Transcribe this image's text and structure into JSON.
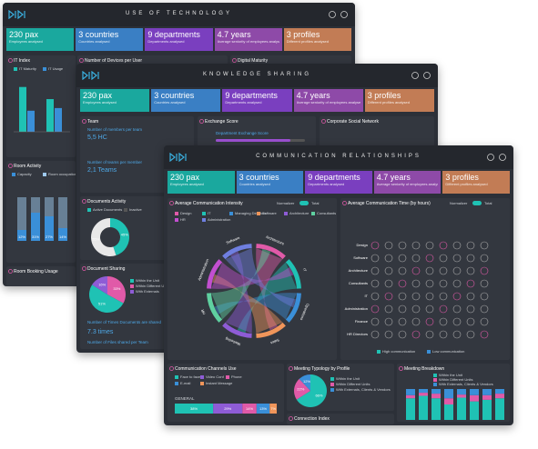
{
  "panels": [
    {
      "title": "USE OF TECHNOLOGY",
      "kpis": [
        {
          "value": "230 pax",
          "label": "Employees analysed"
        },
        {
          "value": "3 countries",
          "label": "Countries analysed"
        },
        {
          "value": "9 departments",
          "label": "Departments analysed"
        },
        {
          "value": "4.7 years",
          "label": "Average seniority of employees analysed"
        },
        {
          "value": "3 profiles",
          "label": "Different profiles analysed"
        }
      ],
      "cards": [
        "IT Index",
        "Number of Devices per User",
        "Digital Maturity",
        "Room Activity",
        "Room Booking Usage"
      ],
      "it_index": {
        "series": [
          {
            "name": "IT Maturity",
            "color": "#1fc2b4",
            "values": [
              85,
              62
            ]
          },
          {
            "name": "IT Usage",
            "color": "#3a8fd8",
            "values": [
              40,
              45
            ]
          }
        ],
        "ylim": [
          0,
          100
        ]
      },
      "room_activity": {
        "legend": [
          "Capacity",
          "Room occupation"
        ],
        "values": [
          12,
          31,
          27,
          14
        ],
        "value_labels": [
          "12%",
          "31%",
          "27%",
          "14%"
        ],
        "ylim": [
          0,
          100
        ]
      }
    },
    {
      "title": "KNOWLEDGE SHARING",
      "kpis": [
        {
          "value": "230 pax",
          "label": "Employees analysed"
        },
        {
          "value": "3 countries",
          "label": "Countries analysed"
        },
        {
          "value": "9 departments",
          "label": "Departments analysed"
        },
        {
          "value": "4.7 years",
          "label": "Average seniority of employees analysed"
        },
        {
          "value": "3 profiles",
          "label": "Different profiles analysed"
        }
      ],
      "cards": [
        "Team",
        "Exchange Score",
        "Corporate Social Network",
        "Documents Activity",
        "Document Sharing"
      ],
      "team": [
        {
          "label": "Number of members per team",
          "value": "5,5 HC"
        },
        {
          "label": "Number of teams per member",
          "value": "2,1 Teams"
        }
      ],
      "exchange": "Department Exchange Score",
      "docs_activity": {
        "legend": [
          "Active Documents",
          "Inactive"
        ],
        "values": [
          45,
          55
        ],
        "value_labels": [
          "45%",
          "55%"
        ]
      },
      "doc_sharing": {
        "legend": [
          "Within the Unit",
          "Within Different Units",
          "With Externals"
        ],
        "values": [
          33,
          51,
          16
        ],
        "value_labels": [
          "33%",
          "51%",
          "16%"
        ]
      },
      "shared": {
        "label": "Number of Times Documents are shared",
        "value": "7.3 times",
        "label2": "Number of Files shared per Team"
      }
    },
    {
      "title": "COMMUNICATION RELATIONSHIPS",
      "kpis": [
        {
          "value": "230 pax",
          "label": "Employees analysed"
        },
        {
          "value": "3 countries",
          "label": "Countries analysed"
        },
        {
          "value": "9 departments",
          "label": "Departments analysed"
        },
        {
          "value": "4.7 years",
          "label": "Average seniority of employees analysed"
        },
        {
          "value": "3 profiles",
          "label": "Different profiles analysed"
        }
      ],
      "cards": [
        "Average Communication Intensity",
        "Average Communication Time (by hours)",
        "Communication Channels Use",
        "Meeting Typology by Profile",
        "Meeting Breakdown",
        "Connection Index"
      ],
      "toggle": [
        "Normalizer",
        "Total"
      ],
      "intensity_legend": [
        "Design",
        "IT",
        "Managing Directors",
        "Software",
        "Architecture",
        "Consultants",
        "HR",
        "Administration"
      ],
      "chord_labels": [
        "Architecture",
        "IT",
        "Operations",
        "Sales",
        "Marketing",
        "HR",
        "Administration",
        "Software"
      ],
      "matrix_rows": [
        "Design",
        "Software",
        "Architecture",
        "Consultants",
        "IT",
        "Administration",
        "Finance",
        "HR Directors"
      ],
      "matrix_legend": [
        "High communication",
        "Low communication"
      ],
      "channels": {
        "legend": [
          "Face to face",
          "Video Conf",
          "Phone",
          "E-mail",
          "Instant Message"
        ],
        "colors": [
          "#1fc2b4",
          "#8e5cd6",
          "#e05aa8",
          "#3a8fd8",
          "#f0955a"
        ],
        "label": "GENERAL",
        "values": [
          38,
          29,
          14,
          13,
          7
        ],
        "value_labels": [
          "38%",
          "29%",
          "14%",
          "13%",
          "7%"
        ]
      },
      "typology": {
        "legend": [
          "Within the Unit",
          "Within Different Units",
          "With Externals, Clients & Vendors"
        ],
        "colors": [
          "#1fc2b4",
          "#e05aa8",
          "#3a8fd8"
        ],
        "values": [
          66,
          22,
          12
        ],
        "value_labels": [
          "66%",
          "22%",
          "12%"
        ]
      },
      "breakdown": {
        "legend": [
          "Within the Unit",
          "Within Different Units",
          "With Externals, Clients & Vendors"
        ],
        "ylim": [
          0,
          100
        ],
        "series": [
          {
            "name": "Within the Unit",
            "color": "#1fc2b4",
            "values": [
              70,
              78,
              70,
              50,
              72,
              60,
              65,
              70
            ]
          },
          {
            "name": "Within Different Units",
            "color": "#e05aa8",
            "values": [
              10,
              10,
              15,
              20,
              10,
              20,
              15,
              15
            ]
          },
          {
            "name": "With Externals, Clients & Vendors",
            "color": "#3a8fd8",
            "values": [
              20,
              12,
              15,
              30,
              18,
              20,
              20,
              15
            ]
          }
        ]
      }
    }
  ]
}
